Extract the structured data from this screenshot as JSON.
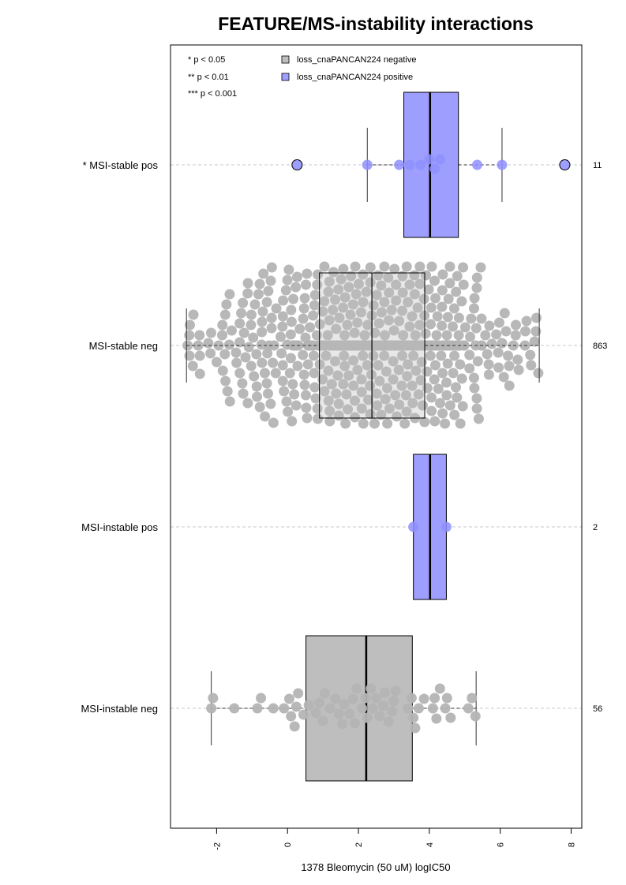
{
  "chart_data": {
    "type": "box-beeswarm",
    "title": "FEATURE/MS-instability interactions",
    "xlabel": "1378 Bleomycin (50 uM) logIC50",
    "xlim": [
      -3.3,
      8.3
    ],
    "xticks": [
      "-2",
      "0",
      "2",
      "4",
      "6",
      "8"
    ],
    "xtick_values": [
      -2,
      0,
      2,
      4,
      6,
      8
    ],
    "grid": false,
    "legend_position": "top-left inside",
    "significance_legend": [
      "* p < 0.05",
      "** p < 0.01",
      "*** p < 0.001"
    ],
    "legend": [
      {
        "label": "loss_cnaPANCAN224 negative",
        "color": "#bebebe"
      },
      {
        "label": "loss_cnaPANCAN224 positive",
        "color": "#9e9eff"
      }
    ],
    "colors": {
      "negative_fill": "#bebebe",
      "negative_point": "#b4b4b4",
      "positive_fill": "#9e9eff",
      "positive_point": "#8f8fff",
      "guide_line": "#c8c8c8"
    },
    "groups": [
      {
        "label": "* MSI-stable pos",
        "count": "11",
        "status": "positive",
        "box": {
          "q1": 3.28,
          "median": 4.02,
          "q3": 4.82,
          "whisker_low": 2.25,
          "whisker_high": 6.05
        },
        "points": [
          2.25,
          3.15,
          3.45,
          3.75,
          4.0,
          4.15,
          4.3,
          5.35,
          6.05
        ],
        "outliers": [
          0.27,
          7.82
        ]
      },
      {
        "label": "MSI-stable neg",
        "count": "863",
        "status": "negative",
        "box": {
          "q1": 0.9,
          "median": 2.38,
          "q3": 3.87,
          "whisker_low": -2.85,
          "whisker_high": 7.1
        },
        "points": [],
        "outliers": []
      },
      {
        "label": "MSI-instable pos",
        "count": "2",
        "status": "positive",
        "box": {
          "q1": 3.55,
          "median": 4.02,
          "q3": 4.48,
          "whisker_low": 3.55,
          "whisker_high": 4.48
        },
        "points": [
          3.55,
          4.48
        ],
        "outliers": []
      },
      {
        "label": "MSI-instable neg",
        "count": "56",
        "status": "negative",
        "box": {
          "q1": 0.52,
          "median": 2.22,
          "q3": 3.52,
          "whisker_low": -2.15,
          "whisker_high": 5.32
        },
        "points": [
          -2.15,
          -2.1,
          -1.5,
          -0.85,
          -0.75,
          -0.4,
          -0.1,
          0.05,
          0.1,
          0.2,
          0.25,
          0.3,
          0.45,
          0.6,
          0.8,
          0.9,
          1.0,
          1.05,
          1.2,
          1.45,
          1.55,
          1.6,
          1.75,
          1.85,
          1.9,
          1.95,
          2.2,
          2.25,
          2.35,
          2.4,
          2.5,
          2.6,
          2.7,
          2.75,
          2.85,
          2.95,
          3.0,
          3.05,
          3.4,
          3.5,
          3.55,
          3.6,
          3.7,
          3.85,
          4.1,
          4.15,
          4.2,
          4.3,
          4.45,
          4.5,
          4.6,
          5.1,
          5.2,
          5.3,
          2.1,
          1.35
        ],
        "outliers": []
      }
    ]
  }
}
